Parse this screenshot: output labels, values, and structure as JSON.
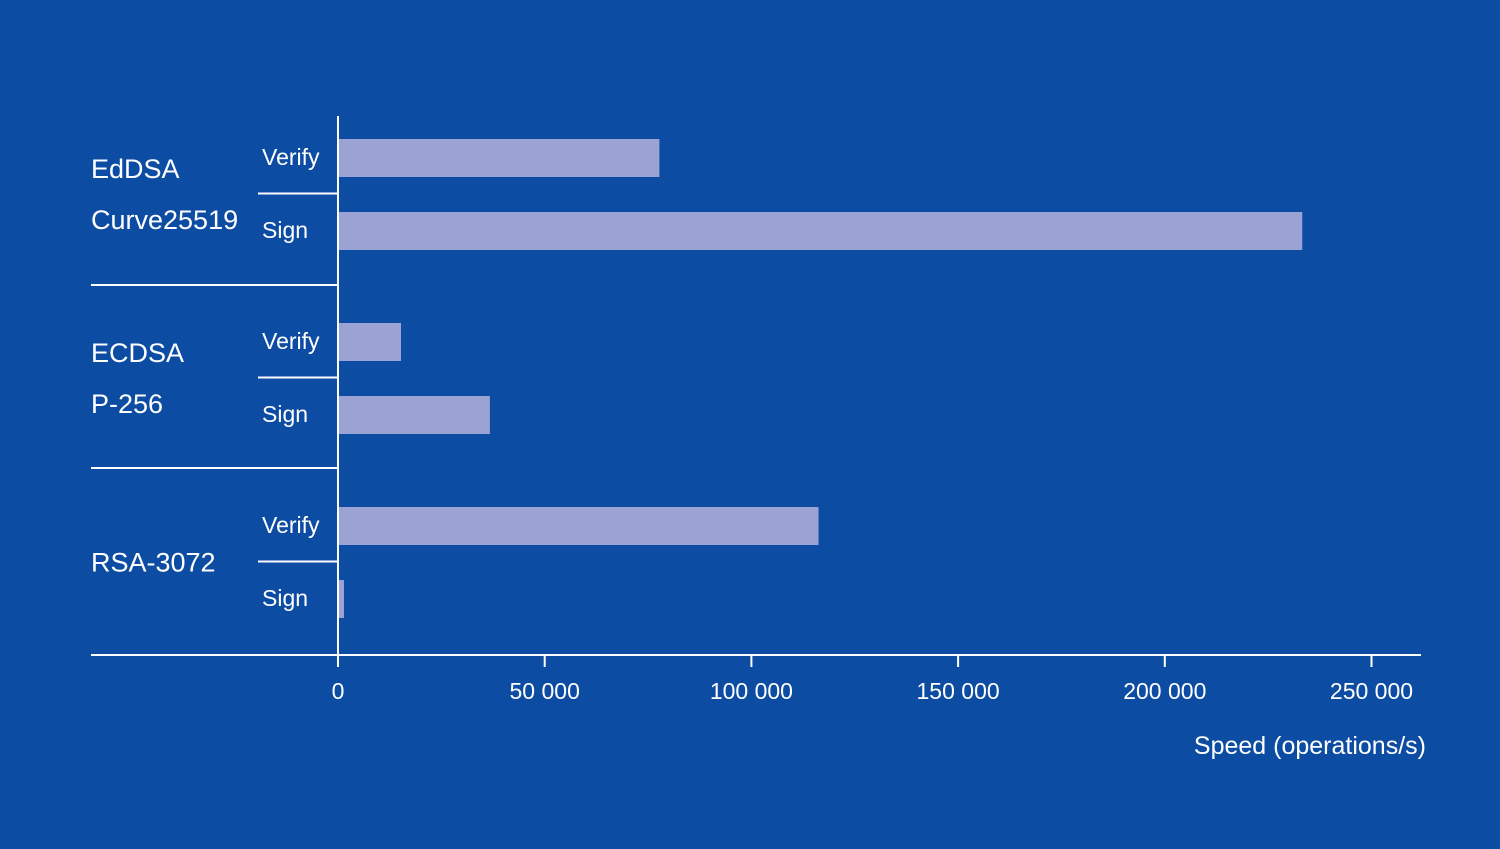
{
  "colors": {
    "background": "#0d4ca3",
    "bar": "#9aa3d4",
    "axis": "#ffffff",
    "text": "#ffffff"
  },
  "chart_data": {
    "type": "bar",
    "orientation": "horizontal",
    "xlabel": "Speed (operations/s)",
    "xlim": [
      0,
      260000
    ],
    "xticks": [
      0,
      50000,
      100000,
      150000,
      200000,
      250000
    ],
    "xtick_labels": [
      "0",
      "50 000",
      "100 000",
      "150 000",
      "200 000",
      "250 000"
    ],
    "groups": [
      {
        "label_lines": [
          "EdDSA",
          "Curve25519"
        ],
        "bars": [
          {
            "label": "Verify",
            "value": 77500
          },
          {
            "label": "Sign",
            "value": 233000
          }
        ]
      },
      {
        "label_lines": [
          "ECDSA",
          "P-256"
        ],
        "bars": [
          {
            "label": "Verify",
            "value": 15000
          },
          {
            "label": "Sign",
            "value": 36500
          }
        ]
      },
      {
        "label_lines": [
          "RSA-3072"
        ],
        "bars": [
          {
            "label": "Verify",
            "value": 116000
          },
          {
            "label": "Sign",
            "value": 1200
          }
        ]
      }
    ],
    "grid": false,
    "legend": "none"
  }
}
